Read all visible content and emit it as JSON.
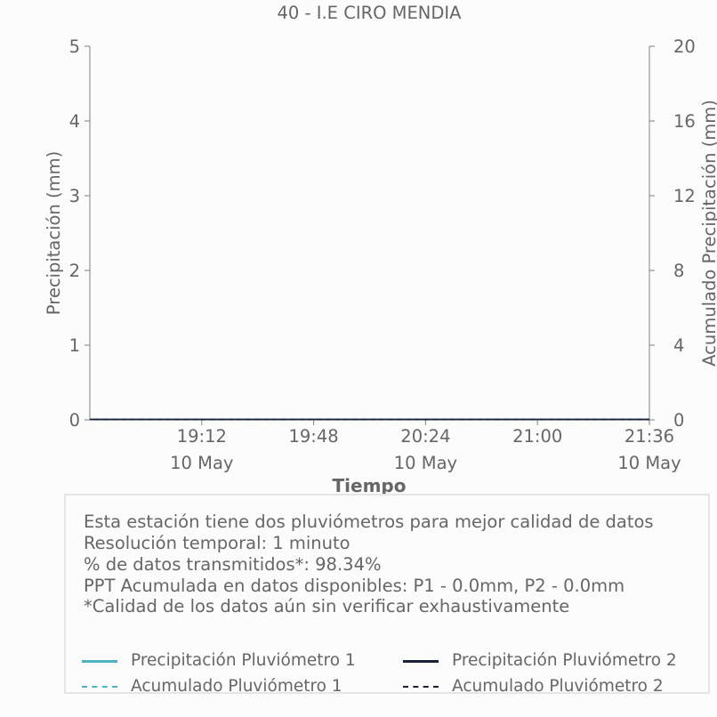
{
  "chart_data": {
    "type": "line",
    "title": "40 - I.E CIRO MENDIA",
    "xlabel": "Tiempo",
    "ylabel_left": "Precipitación (mm)",
    "ylabel_right": "Acumulado Precipitación (mm)",
    "x_range": [
      "2024-05-10 18:36",
      "2024-05-10 21:36"
    ],
    "ylim_left": [
      0,
      5
    ],
    "ylim_right": [
      0,
      20
    ],
    "yticks_left": [
      "0",
      "1",
      "2",
      "3",
      "4",
      "5"
    ],
    "yticks_right": [
      "0",
      "4",
      "8",
      "12",
      "16",
      "20"
    ],
    "xticks": [
      {
        "time": "19:12",
        "date": "10 May"
      },
      {
        "time": "19:48",
        "date": ""
      },
      {
        "time": "20:24",
        "date": "10 May"
      },
      {
        "time": "21:00",
        "date": ""
      },
      {
        "time": "21:36",
        "date": "10 May"
      }
    ],
    "grid": false,
    "series": [
      {
        "name": "Precipitación Pluviómetro 1",
        "axis": "left",
        "color": "#4fb3bf",
        "style": "solid",
        "x": [
          "2024-05-10 18:36",
          "2024-05-10 21:36"
        ],
        "y": [
          0.0,
          0.0
        ]
      },
      {
        "name": "Precipitación Pluviómetro 2",
        "axis": "left",
        "color": "#1a1f3a",
        "style": "solid",
        "x": [
          "2024-05-10 18:36",
          "2024-05-10 21:36"
        ],
        "y": [
          0.0,
          0.0
        ]
      },
      {
        "name": "Acumulado Pluviómetro 1",
        "axis": "right",
        "color": "#4fb3bf",
        "style": "dashed",
        "x": [
          "2024-05-10 18:36",
          "2024-05-10 21:36"
        ],
        "y": [
          0.0,
          0.0
        ]
      },
      {
        "name": "Acumulado Pluviómetro 2",
        "axis": "right",
        "color": "#1a1f3a",
        "style": "dashed",
        "x": [
          "2024-05-10 18:36",
          "2024-05-10 21:36"
        ],
        "y": [
          0.0,
          0.0
        ]
      }
    ]
  },
  "info_box": {
    "lines": [
      "Esta estación tiene dos pluviómetros para mejor calidad de datos",
      "Resolución temporal: 1 minuto",
      "% de datos transmitidos*: 98.34%",
      "PPT Acumulada en datos disponibles: P1 - 0.0mm, P2 - 0.0mm",
      "*Calidad de los datos aún sin verificar exhaustivamente"
    ]
  },
  "colors": {
    "text": "#666666",
    "axis": "#808080",
    "pluviometro_1": "#4fb3bf",
    "pluviometro_2": "#1a1f3a",
    "box_border": "#e5e5e5"
  }
}
